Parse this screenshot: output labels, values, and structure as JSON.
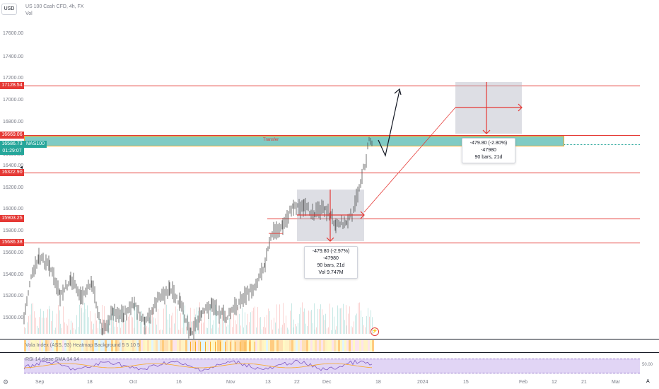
{
  "header": {
    "currency_button": "USD",
    "symbol_title": "US 100 Cash CFD, 4h, FX",
    "volume_label": "Vol"
  },
  "price_axis": {
    "ticks": [
      "17600.00",
      "17400.00",
      "17200.00",
      "17000.00",
      "16800.00",
      "16600.00",
      "16400.00",
      "16200.00",
      "16000.00",
      "15800.00",
      "15600.00",
      "15400.00",
      "15200.00",
      "15000.00"
    ],
    "level_tags": {
      "level_1": "17128.54",
      "level_2": "16669.06",
      "current_price": "16586.73",
      "countdown": "01:29:07",
      "level_3": "16322.90",
      "level_4": "15903.25",
      "level_5": "15686.38"
    },
    "symbol_tag": "NAS100",
    "rsi_level": "50.00"
  },
  "time_axis": {
    "ticks": [
      "Sep",
      "18",
      "Oct",
      "16",
      "Nov",
      "13",
      "22",
      "Dec",
      "18",
      "2024",
      "15",
      "Feb",
      "12",
      "21",
      "Mar"
    ]
  },
  "zone": {
    "label": "Transfer"
  },
  "measure_left": {
    "line1": "-479.80 (-2.97%) -47980",
    "line2": "90 bars, 21d",
    "line3": "Vol 9.747M"
  },
  "measure_right": {
    "line1": "-479.80 (-2.80%) -47980",
    "line2": "90 bars, 21d"
  },
  "indicators": {
    "heatmap_legend": "Vola Index (ASS, 93) Heatmap Background 5 5 10 5",
    "rsi_legend": "RSI 14 close SMA 14 14"
  },
  "colors": {
    "level_line": "#e53935",
    "zone_fill": "#80cbc4",
    "zone_border": "#f9a825",
    "price_tag": "#26a69a",
    "candle": "#505050",
    "rsi_band": "#e1d5f5"
  },
  "scroll_button": "A",
  "bottom_icon": "gear-icon"
}
